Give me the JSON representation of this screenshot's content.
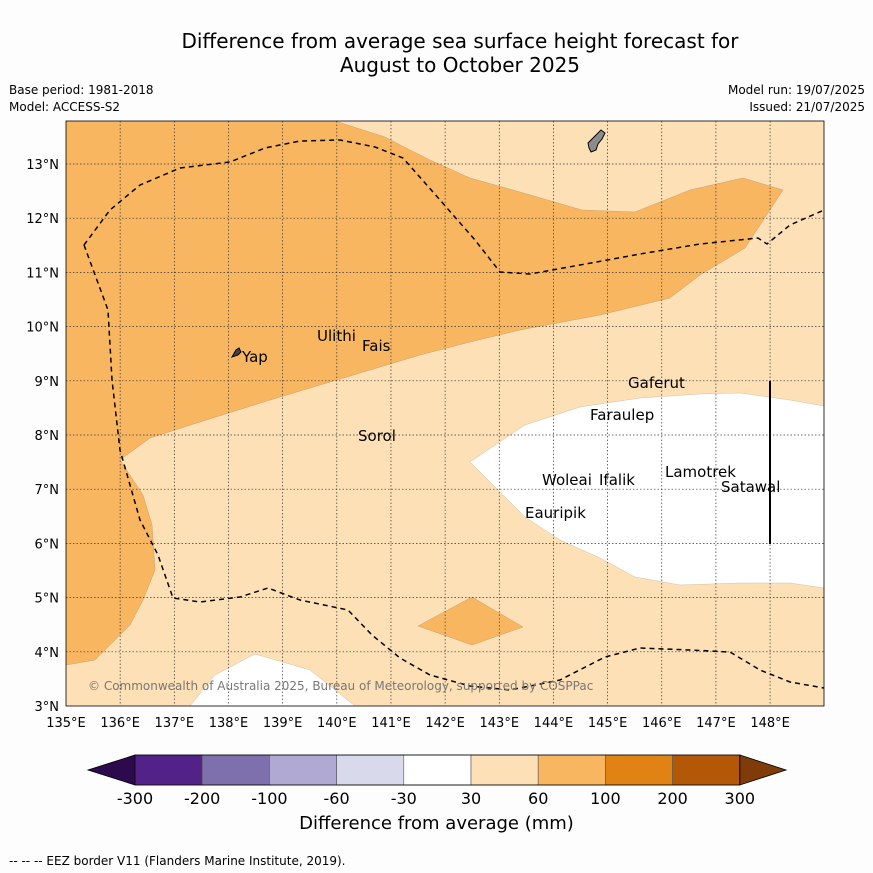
{
  "title": {
    "line1": "Difference from average sea surface height forecast for",
    "line2": "August to October 2025"
  },
  "meta": {
    "base_period": "Base period: 1981-2018",
    "model": "Model: ACCESS-S2",
    "model_run": "Model run: 19/07/2025",
    "issued": "Issued: 21/07/2025"
  },
  "map": {
    "lon_labels": [
      "135°E",
      "136°E",
      "137°E",
      "138°E",
      "139°E",
      "140°E",
      "141°E",
      "142°E",
      "143°E",
      "144°E",
      "145°E",
      "146°E",
      "147°E",
      "148°E"
    ],
    "lat_labels": [
      "3°N",
      "4°N",
      "5°N",
      "6°N",
      "7°N",
      "8°N",
      "9°N",
      "10°N",
      "11°N",
      "12°N",
      "13°N"
    ],
    "places": [
      "Ulithi",
      "Fais",
      "Yap",
      "Gaferut",
      "Faraulep",
      "Sorol",
      "Lamotrek",
      "Woleai",
      "Ifalik",
      "Satawal",
      "Eauripik"
    ],
    "copyright": "© Commonwealth of Australia 2025, Bureau of Meteorology, supported by COSPPac"
  },
  "colorbar": {
    "ticks": [
      "-300",
      "-200",
      "-100",
      "-60",
      "-30",
      "30",
      "60",
      "100",
      "200",
      "300"
    ],
    "colors": [
      "#2d0a4e",
      "#532288",
      "#7e70ac",
      "#b0a9d3",
      "#d9d9ec",
      "#ffffff",
      "#fde0b6",
      "#f9b661",
      "#e08214",
      "#b35806",
      "#7f3b08"
    ],
    "label": "Difference from average (mm)"
  },
  "footnote": "--  --  -- EEZ border V11 (Flanders Marine Institute, 2019)."
}
